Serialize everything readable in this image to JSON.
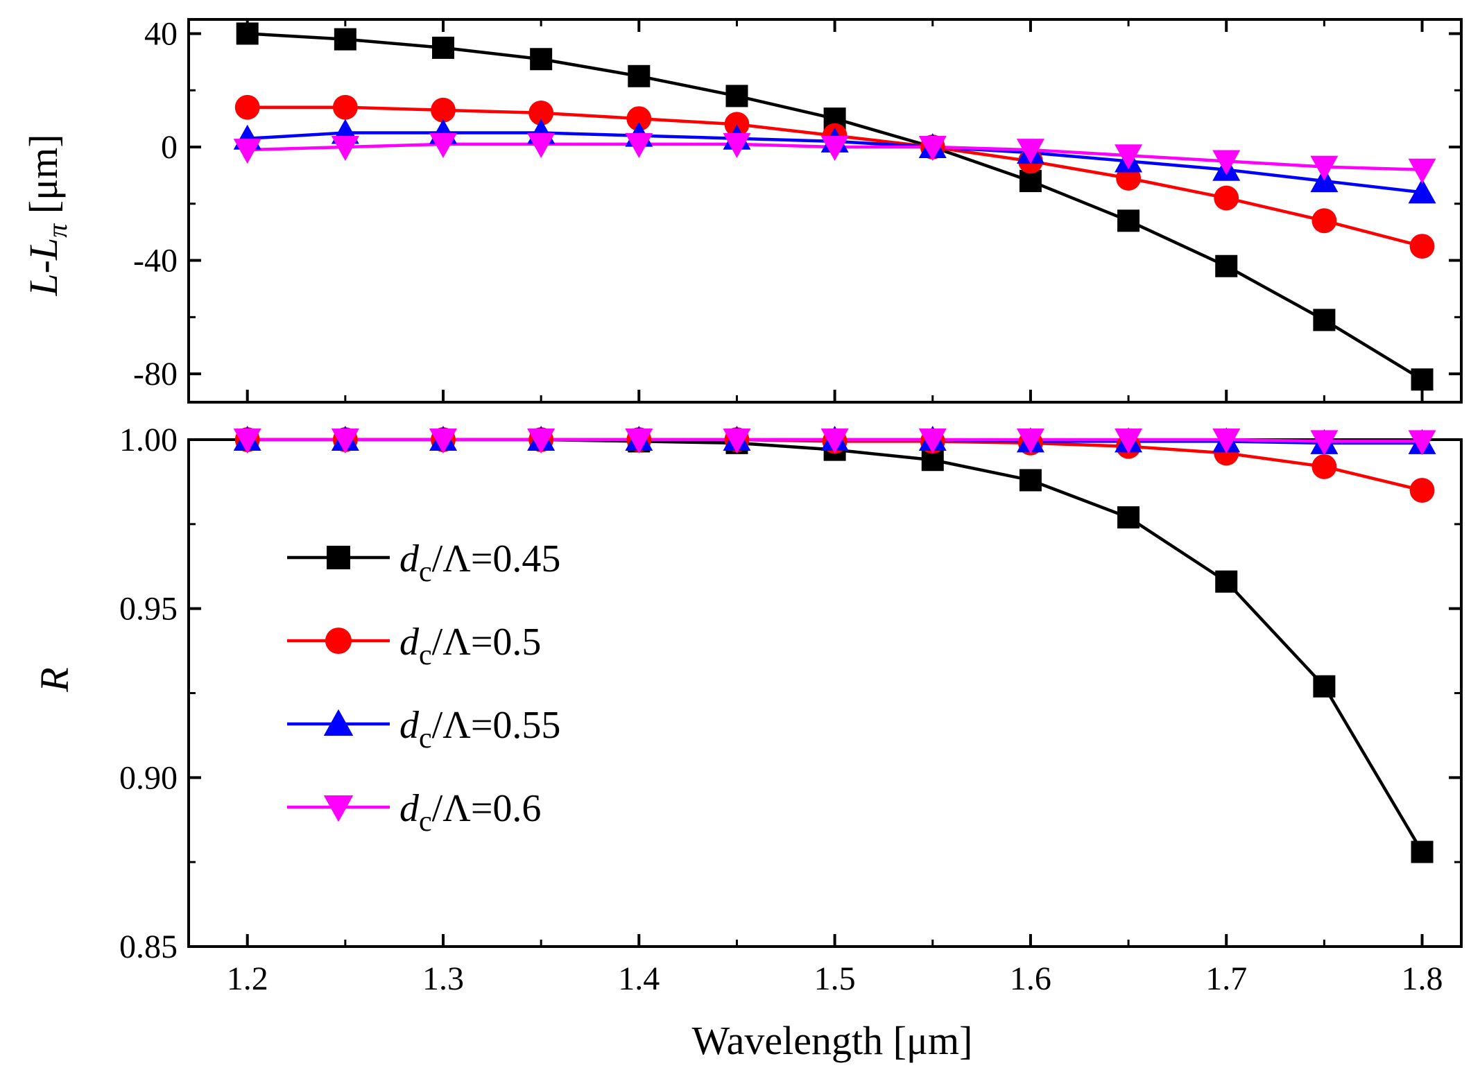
{
  "chart_data": [
    {
      "type": "line",
      "panel": "top",
      "ylabel": "L-Lπ [μm]",
      "ylabel_parts": {
        "main": "L-L",
        "sub": "π",
        "unit": " [μm]"
      },
      "ylim": [
        -90,
        45
      ],
      "yticks": [
        -80,
        -40,
        0,
        40
      ],
      "yticklabels": [
        "-80",
        "-40",
        "0",
        "40"
      ],
      "x": [
        1.2,
        1.25,
        1.3,
        1.35,
        1.4,
        1.45,
        1.5,
        1.55,
        1.6,
        1.65,
        1.7,
        1.75,
        1.8
      ],
      "series": [
        {
          "name": "dc/Λ=0.45",
          "values": [
            40,
            38,
            35,
            31,
            25,
            18,
            10,
            0,
            -12,
            -26,
            -42,
            -61,
            -82
          ]
        },
        {
          "name": "dc/Λ=0.5",
          "values": [
            14,
            14,
            13,
            12,
            10,
            8,
            4,
            0,
            -5,
            -11,
            -18,
            -26,
            -35
          ]
        },
        {
          "name": "dc/Λ=0.55",
          "values": [
            3,
            5,
            5,
            5,
            4,
            3,
            2,
            0,
            -2,
            -5,
            -8,
            -12,
            -16
          ]
        },
        {
          "name": "dc/Λ=0.6",
          "values": [
            -1,
            0,
            1,
            1,
            1,
            1,
            0,
            0,
            -1,
            -3,
            -5,
            -7,
            -8
          ]
        }
      ]
    },
    {
      "type": "line",
      "panel": "bottom",
      "ylabel": "R",
      "xlabel": "Wavelength [μm]",
      "ylim": [
        0.85,
        1.0
      ],
      "yticks": [
        0.85,
        0.9,
        0.95,
        1.0
      ],
      "yticklabels": [
        "0.85",
        "0.90",
        "0.95",
        "1.00"
      ],
      "xlim": [
        1.17,
        1.82
      ],
      "xticks": [
        1.2,
        1.3,
        1.4,
        1.5,
        1.6,
        1.7,
        1.8
      ],
      "xticklabels": [
        "1.2",
        "1.3",
        "1.4",
        "1.5",
        "1.6",
        "1.7",
        "1.8"
      ],
      "x": [
        1.2,
        1.25,
        1.3,
        1.35,
        1.4,
        1.45,
        1.5,
        1.55,
        1.6,
        1.65,
        1.7,
        1.75,
        1.8
      ],
      "legend_position": "middle-left",
      "series": [
        {
          "name": "dc/Λ=0.45",
          "values": [
            1.0,
            1.0,
            1.0,
            1.0,
            0.9995,
            0.999,
            0.997,
            0.994,
            0.988,
            0.977,
            0.958,
            0.927,
            0.878
          ]
        },
        {
          "name": "dc/Λ=0.5",
          "values": [
            1.0,
            1.0,
            1.0,
            1.0,
            1.0,
            1.0,
            0.9995,
            0.9995,
            0.999,
            0.998,
            0.996,
            0.992,
            0.985
          ]
        },
        {
          "name": "dc/Λ=0.55",
          "values": [
            1.0,
            1.0,
            1.0,
            1.0,
            1.0,
            1.0,
            1.0,
            1.0,
            0.9995,
            0.9995,
            0.9995,
            0.999,
            0.999
          ]
        },
        {
          "name": "dc/Λ=0.6",
          "values": [
            1.0,
            1.0,
            1.0,
            1.0,
            1.0,
            1.0,
            1.0,
            1.0,
            1.0,
            1.0,
            1.0,
            0.9995,
            0.9995
          ]
        }
      ]
    }
  ],
  "legend": [
    {
      "symbol": "d",
      "sub": "c",
      "rest": "/Λ=0.45",
      "marker": "square",
      "color": "#000000"
    },
    {
      "symbol": "d",
      "sub": "c",
      "rest": "/Λ=0.5",
      "marker": "circle",
      "color": "#ff0000"
    },
    {
      "symbol": "d",
      "sub": "c",
      "rest": "/Λ=0.55",
      "marker": "triangle-up",
      "color": "#0000ff"
    },
    {
      "symbol": "d",
      "sub": "c",
      "rest": "/Λ=0.6",
      "marker": "triangle-down",
      "color": "#ff00ff"
    }
  ],
  "series_style": [
    {
      "marker": "square",
      "color": "#000000"
    },
    {
      "marker": "circle",
      "color": "#ff0000"
    },
    {
      "marker": "triangle-up",
      "color": "#0000ff"
    },
    {
      "marker": "triangle-down",
      "color": "#ff00ff"
    }
  ]
}
